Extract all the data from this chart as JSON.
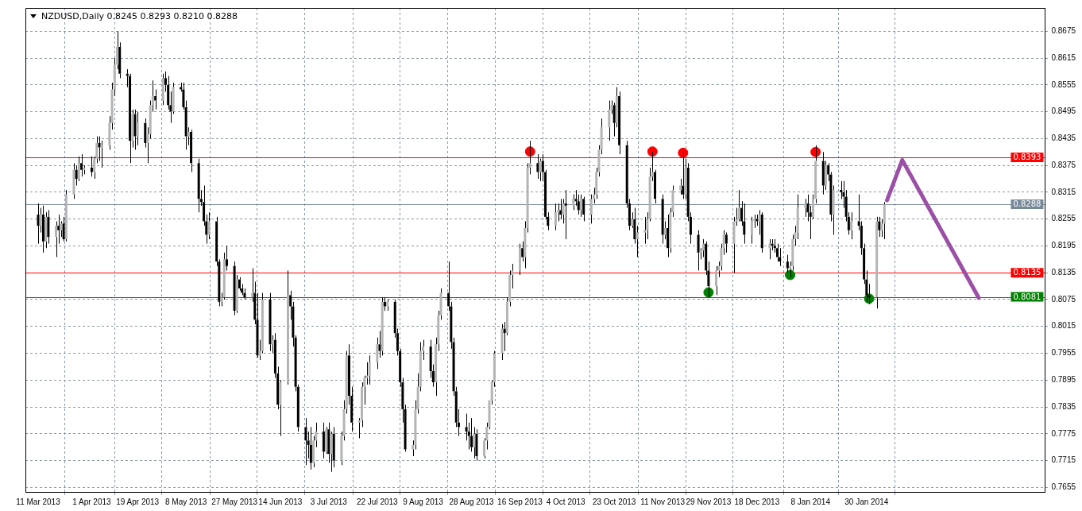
{
  "chart_data": {
    "type": "candlestick",
    "title": "NZDUSD,Daily  0.8245 0.8293 0.8210 0.8288",
    "x": [
      "2013-03-11",
      "2013-03-12",
      "2013-03-13",
      "2013-03-14",
      "2013-03-15",
      "2013-03-18",
      "2013-03-19",
      "2013-03-20",
      "2013-03-21",
      "2013-03-22",
      "2013-03-25",
      "2013-03-26",
      "2013-03-27",
      "2013-03-28",
      "2013-03-29",
      "2013-04-01",
      "2013-04-02",
      "2013-04-03",
      "2013-04-04",
      "2013-04-05",
      "2013-04-08",
      "2013-04-09",
      "2013-04-10",
      "2013-04-11",
      "2013-04-12",
      "2013-04-15",
      "2013-04-16",
      "2013-04-17",
      "2013-04-18",
      "2013-04-19",
      "2013-04-22",
      "2013-04-23",
      "2013-04-24",
      "2013-04-25",
      "2013-04-26",
      "2013-04-29",
      "2013-04-30",
      "2013-05-01",
      "2013-05-02",
      "2013-05-03",
      "2013-05-06",
      "2013-05-07",
      "2013-05-08",
      "2013-05-09",
      "2013-05-10",
      "2013-05-13",
      "2013-05-14",
      "2013-05-15",
      "2013-05-16",
      "2013-05-17",
      "2013-05-20",
      "2013-05-21",
      "2013-05-22",
      "2013-05-23",
      "2013-05-24",
      "2013-05-27",
      "2013-05-28",
      "2013-05-29",
      "2013-05-30",
      "2013-05-31",
      "2013-06-03",
      "2013-06-04",
      "2013-06-05",
      "2013-06-06",
      "2013-06-07",
      "2013-06-10",
      "2013-06-11",
      "2013-06-12",
      "2013-06-13",
      "2013-06-14",
      "2013-06-17",
      "2013-06-18",
      "2013-06-19",
      "2013-06-20",
      "2013-06-21",
      "2013-06-24",
      "2013-06-25",
      "2013-06-26",
      "2013-06-27",
      "2013-06-28",
      "2013-07-01",
      "2013-07-02",
      "2013-07-03",
      "2013-07-04",
      "2013-07-05",
      "2013-07-08",
      "2013-07-09",
      "2013-07-10",
      "2013-07-11",
      "2013-07-12",
      "2013-07-15",
      "2013-07-16",
      "2013-07-17",
      "2013-07-18",
      "2013-07-19",
      "2013-07-22",
      "2013-07-23",
      "2013-07-24",
      "2013-07-25",
      "2013-07-26",
      "2013-07-29",
      "2013-07-30",
      "2013-07-31",
      "2013-08-01",
      "2013-08-02",
      "2013-08-05",
      "2013-08-06",
      "2013-08-07",
      "2013-08-08",
      "2013-08-09",
      "2013-08-12",
      "2013-08-13",
      "2013-08-14",
      "2013-08-15",
      "2013-08-16",
      "2013-08-19",
      "2013-08-20",
      "2013-08-21",
      "2013-08-22",
      "2013-08-23",
      "2013-08-26",
      "2013-08-27",
      "2013-08-28",
      "2013-08-29",
      "2013-08-30",
      "2013-09-02",
      "2013-09-03",
      "2013-09-04",
      "2013-09-05",
      "2013-09-06",
      "2013-09-09",
      "2013-09-10",
      "2013-09-11",
      "2013-09-12",
      "2013-09-13",
      "2013-09-16",
      "2013-09-17",
      "2013-09-18",
      "2013-09-19",
      "2013-09-20",
      "2013-09-23",
      "2013-09-24",
      "2013-09-25",
      "2013-09-26",
      "2013-09-27",
      "2013-09-30",
      "2013-10-01",
      "2013-10-02",
      "2013-10-03",
      "2013-10-04",
      "2013-10-07",
      "2013-10-08",
      "2013-10-09",
      "2013-10-10",
      "2013-10-11",
      "2013-10-14",
      "2013-10-15",
      "2013-10-16",
      "2013-10-17",
      "2013-10-18",
      "2013-10-21",
      "2013-10-22",
      "2013-10-23",
      "2013-10-24",
      "2013-10-25",
      "2013-10-28",
      "2013-10-29",
      "2013-10-30",
      "2013-10-31",
      "2013-11-01",
      "2013-11-04",
      "2013-11-05",
      "2013-11-06",
      "2013-11-07",
      "2013-11-08",
      "2013-11-11",
      "2013-11-12",
      "2013-11-13",
      "2013-11-14",
      "2013-11-15",
      "2013-11-18",
      "2013-11-19",
      "2013-11-20",
      "2013-11-21",
      "2013-11-22",
      "2013-11-25",
      "2013-11-26",
      "2013-11-27",
      "2013-11-28",
      "2013-11-29",
      "2013-12-02",
      "2013-12-03",
      "2013-12-04",
      "2013-12-05",
      "2013-12-06",
      "2013-12-09",
      "2013-12-10",
      "2013-12-11",
      "2013-12-12",
      "2013-12-13",
      "2013-12-16",
      "2013-12-17",
      "2013-12-18",
      "2013-12-19",
      "2013-12-20",
      "2013-12-23",
      "2013-12-24",
      "2013-12-25",
      "2013-12-26",
      "2013-12-27",
      "2013-12-30",
      "2013-12-31",
      "2014-01-01",
      "2014-01-02",
      "2014-01-03",
      "2014-01-06",
      "2014-01-07",
      "2014-01-08",
      "2014-01-09",
      "2014-01-10",
      "2014-01-13",
      "2014-01-14",
      "2014-01-15",
      "2014-01-16",
      "2014-01-17",
      "2014-01-20",
      "2014-01-21",
      "2014-01-22",
      "2014-01-23",
      "2014-01-24",
      "2014-01-27",
      "2014-01-28",
      "2014-01-29",
      "2014-01-30",
      "2014-01-31",
      "2014-02-03",
      "2014-02-04",
      "2014-02-05",
      "2014-02-06"
    ],
    "ohlc": [
      [
        0.8265,
        0.829,
        0.82,
        0.824
      ],
      [
        0.824,
        0.828,
        0.8225,
        0.8265
      ],
      [
        0.8265,
        0.8285,
        0.818,
        0.8205
      ],
      [
        0.8205,
        0.827,
        0.819,
        0.826
      ],
      [
        0.826,
        0.8275,
        0.82,
        0.8215
      ],
      [
        0.8215,
        0.825,
        0.817,
        0.824
      ],
      [
        0.824,
        0.8265,
        0.82,
        0.823
      ],
      [
        0.823,
        0.825,
        0.8215,
        0.8245
      ],
      [
        0.8245,
        0.826,
        0.8205,
        0.821
      ],
      [
        0.821,
        0.832,
        0.8205,
        0.831
      ],
      [
        0.831,
        0.838,
        0.83,
        0.8365
      ],
      [
        0.8365,
        0.8375,
        0.833,
        0.8345
      ],
      [
        0.8345,
        0.8395,
        0.834,
        0.838
      ],
      [
        0.838,
        0.84,
        0.835,
        0.8365
      ],
      [
        0.8365,
        0.8375,
        0.8355,
        0.837
      ],
      [
        0.837,
        0.8395,
        0.835,
        0.836
      ],
      [
        0.836,
        0.8395,
        0.8345,
        0.839
      ],
      [
        0.839,
        0.844,
        0.838,
        0.8425
      ],
      [
        0.8425,
        0.844,
        0.8385,
        0.8415
      ],
      [
        0.8415,
        0.843,
        0.837,
        0.842
      ],
      [
        0.842,
        0.8485,
        0.841,
        0.847
      ],
      [
        0.847,
        0.856,
        0.8455,
        0.8545
      ],
      [
        0.8545,
        0.8615,
        0.853,
        0.86
      ],
      [
        0.86,
        0.8675,
        0.859,
        0.864
      ],
      [
        0.864,
        0.865,
        0.857,
        0.858
      ],
      [
        0.858,
        0.859,
        0.855,
        0.8575
      ],
      [
        0.8575,
        0.858,
        0.838,
        0.843
      ],
      [
        0.843,
        0.85,
        0.8415,
        0.849
      ],
      [
        0.849,
        0.85,
        0.841,
        0.844
      ],
      [
        0.844,
        0.8495,
        0.842,
        0.847
      ],
      [
        0.847,
        0.848,
        0.8415,
        0.8425
      ],
      [
        0.8425,
        0.846,
        0.838,
        0.8445
      ],
      [
        0.8445,
        0.852,
        0.8435,
        0.851
      ],
      [
        0.851,
        0.8565,
        0.8495,
        0.853
      ],
      [
        0.853,
        0.8545,
        0.85,
        0.852
      ],
      [
        0.852,
        0.858,
        0.851,
        0.857
      ],
      [
        0.857,
        0.8585,
        0.854,
        0.8555
      ],
      [
        0.8555,
        0.8575,
        0.85,
        0.851
      ],
      [
        0.851,
        0.854,
        0.847,
        0.8495
      ],
      [
        0.8495,
        0.856,
        0.849,
        0.855
      ],
      [
        0.855,
        0.856,
        0.854,
        0.8545
      ],
      [
        0.8545,
        0.856,
        0.85,
        0.8505
      ],
      [
        0.8505,
        0.852,
        0.841,
        0.844
      ],
      [
        0.844,
        0.846,
        0.842,
        0.845
      ],
      [
        0.845,
        0.8455,
        0.836,
        0.838
      ],
      [
        0.838,
        0.839,
        0.827,
        0.83
      ],
      [
        0.83,
        0.832,
        0.8285,
        0.8293
      ],
      [
        0.8293,
        0.833,
        0.824,
        0.825
      ],
      [
        0.825,
        0.8265,
        0.82,
        0.822
      ],
      [
        0.822,
        0.827,
        0.821,
        0.825
      ],
      [
        0.825,
        0.826,
        0.815,
        0.816
      ],
      [
        0.816,
        0.8165,
        0.806,
        0.807
      ],
      [
        0.807,
        0.809,
        0.806,
        0.808
      ],
      [
        0.808,
        0.818,
        0.8075,
        0.8165
      ],
      [
        0.8165,
        0.8195,
        0.814,
        0.815
      ],
      [
        0.815,
        0.816,
        0.804,
        0.805
      ],
      [
        0.805,
        0.813,
        0.8045,
        0.812
      ],
      [
        0.812,
        0.8125,
        0.8095,
        0.81
      ],
      [
        0.81,
        0.811,
        0.8085,
        0.809
      ],
      [
        0.809,
        0.81,
        0.8075,
        0.808
      ],
      [
        0.808,
        0.8145,
        0.807,
        0.809
      ],
      [
        0.809,
        0.8115,
        0.802,
        0.803
      ],
      [
        0.803,
        0.809,
        0.7945,
        0.795
      ],
      [
        0.795,
        0.7985,
        0.794,
        0.796
      ],
      [
        0.796,
        0.809,
        0.7955,
        0.8075
      ],
      [
        0.8075,
        0.809,
        0.796,
        0.7975
      ],
      [
        0.7975,
        0.7995,
        0.7955,
        0.7985
      ],
      [
        0.7985,
        0.8,
        0.79,
        0.791
      ],
      [
        0.791,
        0.7925,
        0.783,
        0.784
      ],
      [
        0.784,
        0.7895,
        0.777,
        0.789
      ],
      [
        0.789,
        0.814,
        0.7885,
        0.8085
      ],
      [
        0.8085,
        0.8095,
        0.803,
        0.806
      ],
      [
        0.806,
        0.807,
        0.797,
        0.799
      ],
      [
        0.799,
        0.7995,
        0.787,
        0.788
      ],
      [
        0.788,
        0.7885,
        0.778,
        0.779
      ],
      [
        0.779,
        0.781,
        0.7705,
        0.776
      ],
      [
        0.776,
        0.778,
        0.772,
        0.775
      ],
      [
        0.775,
        0.779,
        0.7695,
        0.771
      ],
      [
        0.771,
        0.777,
        0.77,
        0.776
      ],
      [
        0.776,
        0.78,
        0.7745,
        0.778
      ],
      [
        0.778,
        0.78,
        0.772,
        0.7735
      ],
      [
        0.7735,
        0.779,
        0.773,
        0.7785
      ],
      [
        0.7785,
        0.78,
        0.771,
        0.773
      ],
      [
        0.773,
        0.778,
        0.769,
        0.7775
      ],
      [
        0.7775,
        0.779,
        0.77,
        0.7715
      ],
      [
        0.7715,
        0.778,
        0.7705,
        0.777
      ],
      [
        0.777,
        0.785,
        0.776,
        0.783
      ],
      [
        0.783,
        0.796,
        0.782,
        0.795
      ],
      [
        0.795,
        0.7975,
        0.784,
        0.786
      ],
      [
        0.786,
        0.788,
        0.778,
        0.78
      ],
      [
        0.78,
        0.781,
        0.7765,
        0.7805
      ],
      [
        0.7805,
        0.789,
        0.779,
        0.788
      ],
      [
        0.788,
        0.7905,
        0.784,
        0.79
      ],
      [
        0.79,
        0.7935,
        0.7885,
        0.7905
      ],
      [
        0.7905,
        0.795,
        0.7885,
        0.7935
      ],
      [
        0.7935,
        0.799,
        0.792,
        0.7975
      ],
      [
        0.7975,
        0.8005,
        0.7945,
        0.796
      ],
      [
        0.796,
        0.808,
        0.795,
        0.807
      ],
      [
        0.807,
        0.808,
        0.805,
        0.806
      ],
      [
        0.806,
        0.8075,
        0.805,
        0.807
      ],
      [
        0.807,
        0.8075,
        0.799,
        0.8
      ],
      [
        0.8,
        0.801,
        0.795,
        0.796
      ],
      [
        0.796,
        0.7965,
        0.788,
        0.789
      ],
      [
        0.789,
        0.79,
        0.78,
        0.783
      ],
      [
        0.783,
        0.784,
        0.7735,
        0.774
      ],
      [
        0.774,
        0.776,
        0.7725,
        0.775
      ],
      [
        0.775,
        0.785,
        0.774,
        0.783
      ],
      [
        0.783,
        0.791,
        0.782,
        0.788
      ],
      [
        0.788,
        0.798,
        0.787,
        0.796
      ],
      [
        0.796,
        0.7985,
        0.794,
        0.797
      ],
      [
        0.797,
        0.7985,
        0.79,
        0.7915
      ],
      [
        0.7915,
        0.793,
        0.788,
        0.789
      ],
      [
        0.789,
        0.799,
        0.786,
        0.7975
      ],
      [
        0.7975,
        0.805,
        0.796,
        0.804
      ],
      [
        0.804,
        0.81,
        0.803,
        0.809
      ],
      [
        0.809,
        0.816,
        0.805,
        0.806
      ],
      [
        0.806,
        0.807,
        0.7965,
        0.798
      ],
      [
        0.798,
        0.799,
        0.786,
        0.787
      ],
      [
        0.787,
        0.788,
        0.779,
        0.78
      ],
      [
        0.78,
        0.783,
        0.777,
        0.779
      ],
      [
        0.779,
        0.782,
        0.776,
        0.778
      ],
      [
        0.778,
        0.78,
        0.774,
        0.777
      ],
      [
        0.777,
        0.781,
        0.7735,
        0.7745
      ],
      [
        0.7745,
        0.779,
        0.772,
        0.7775
      ],
      [
        0.7775,
        0.7785,
        0.7715,
        0.7725
      ],
      [
        0.7725,
        0.7765,
        0.772,
        0.776
      ],
      [
        0.776,
        0.78,
        0.774,
        0.779
      ],
      [
        0.779,
        0.785,
        0.7785,
        0.785
      ],
      [
        0.785,
        0.7895,
        0.784,
        0.789
      ],
      [
        0.789,
        0.796,
        0.788,
        0.7955
      ],
      [
        0.7955,
        0.802,
        0.794,
        0.801
      ],
      [
        0.801,
        0.8025,
        0.796,
        0.8
      ],
      [
        0.8,
        0.808,
        0.7995,
        0.807
      ],
      [
        0.807,
        0.814,
        0.806,
        0.813
      ],
      [
        0.813,
        0.8155,
        0.81,
        0.814
      ],
      [
        0.814,
        0.82,
        0.813,
        0.819
      ],
      [
        0.819,
        0.8205,
        0.816,
        0.817
      ],
      [
        0.817,
        0.825,
        0.8145,
        0.8235
      ],
      [
        0.8235,
        0.838,
        0.8225,
        0.837
      ],
      [
        0.837,
        0.843,
        0.8355,
        0.838
      ],
      [
        0.838,
        0.84,
        0.8345,
        0.836
      ],
      [
        0.836,
        0.839,
        0.834,
        0.8385
      ],
      [
        0.8385,
        0.84,
        0.834,
        0.836
      ],
      [
        0.836,
        0.8365,
        0.8255,
        0.826
      ],
      [
        0.826,
        0.827,
        0.823,
        0.824
      ],
      [
        0.824,
        0.829,
        0.823,
        0.827
      ],
      [
        0.827,
        0.829,
        0.825,
        0.8275
      ],
      [
        0.8275,
        0.83,
        0.8255,
        0.8265
      ],
      [
        0.8265,
        0.83,
        0.8245,
        0.829
      ],
      [
        0.829,
        0.832,
        0.821,
        0.8285
      ],
      [
        0.8285,
        0.831,
        0.8275,
        0.83
      ],
      [
        0.83,
        0.832,
        0.8285,
        0.8295
      ],
      [
        0.8295,
        0.831,
        0.8265,
        0.8275
      ],
      [
        0.8275,
        0.831,
        0.826,
        0.83
      ],
      [
        0.83,
        0.8305,
        0.825,
        0.8265
      ],
      [
        0.8265,
        0.831,
        0.8245,
        0.83
      ],
      [
        0.83,
        0.8325,
        0.829,
        0.831
      ],
      [
        0.831,
        0.837,
        0.83,
        0.836
      ],
      [
        0.836,
        0.842,
        0.835,
        0.841
      ],
      [
        0.841,
        0.848,
        0.84,
        0.846
      ],
      [
        0.846,
        0.852,
        0.843,
        0.85
      ],
      [
        0.85,
        0.852,
        0.849,
        0.851
      ],
      [
        0.851,
        0.8515,
        0.844,
        0.847
      ],
      [
        0.847,
        0.855,
        0.846,
        0.853
      ],
      [
        0.853,
        0.854,
        0.84,
        0.842
      ],
      [
        0.842,
        0.843,
        0.828,
        0.829
      ],
      [
        0.829,
        0.83,
        0.823,
        0.824
      ],
      [
        0.824,
        0.827,
        0.8235,
        0.8255
      ],
      [
        0.8255,
        0.828,
        0.82,
        0.821
      ],
      [
        0.821,
        0.824,
        0.817,
        0.8225
      ],
      [
        0.8225,
        0.826,
        0.82,
        0.823
      ],
      [
        0.823,
        0.827,
        0.821,
        0.8255
      ],
      [
        0.8255,
        0.837,
        0.825,
        0.835
      ],
      [
        0.835,
        0.8405,
        0.834,
        0.836
      ],
      [
        0.836,
        0.8365,
        0.829,
        0.83
      ],
      [
        0.83,
        0.831,
        0.82,
        0.822
      ],
      [
        0.822,
        0.825,
        0.821,
        0.8235
      ],
      [
        0.8235,
        0.8265,
        0.817,
        0.819
      ],
      [
        0.819,
        0.828,
        0.818,
        0.827
      ],
      [
        0.827,
        0.833,
        0.826,
        0.832
      ],
      [
        0.832,
        0.8345,
        0.831,
        0.833
      ],
      [
        0.833,
        0.8405,
        0.83,
        0.831
      ],
      [
        0.831,
        0.839,
        0.83,
        0.837
      ],
      [
        0.837,
        0.838,
        0.825,
        0.826
      ],
      [
        0.826,
        0.827,
        0.82,
        0.822
      ],
      [
        0.822,
        0.823,
        0.814,
        0.818
      ],
      [
        0.818,
        0.819,
        0.8165,
        0.8185
      ],
      [
        0.8185,
        0.821,
        0.817,
        0.82
      ],
      [
        0.82,
        0.8205,
        0.813,
        0.814
      ],
      [
        0.814,
        0.816,
        0.808,
        0.8105
      ],
      [
        0.8105,
        0.815,
        0.8085,
        0.814
      ],
      [
        0.814,
        0.816,
        0.8125,
        0.815
      ],
      [
        0.815,
        0.82,
        0.814,
        0.819
      ],
      [
        0.819,
        0.823,
        0.8175,
        0.822
      ],
      [
        0.822,
        0.8225,
        0.818,
        0.82
      ],
      [
        0.82,
        0.826,
        0.8135,
        0.825
      ],
      [
        0.825,
        0.828,
        0.824,
        0.8255
      ],
      [
        0.8255,
        0.832,
        0.825,
        0.828
      ],
      [
        0.828,
        0.8295,
        0.824,
        0.825
      ],
      [
        0.825,
        0.829,
        0.82,
        0.822
      ],
      [
        0.822,
        0.826,
        0.82,
        0.825
      ],
      [
        0.825,
        0.8265,
        0.8235,
        0.8255
      ],
      [
        0.8255,
        0.8265,
        0.824,
        0.825
      ],
      [
        0.825,
        0.8275,
        0.822,
        0.8265
      ],
      [
        0.8265,
        0.827,
        0.818,
        0.819
      ],
      [
        0.819,
        0.821,
        0.8165,
        0.82
      ],
      [
        0.82,
        0.821,
        0.8185,
        0.8195
      ],
      [
        0.8195,
        0.821,
        0.818,
        0.819
      ],
      [
        0.819,
        0.82,
        0.816,
        0.817
      ],
      [
        0.817,
        0.819,
        0.815,
        0.816
      ],
      [
        0.816,
        0.8175,
        0.8135,
        0.8145
      ],
      [
        0.8145,
        0.816,
        0.8125,
        0.815
      ],
      [
        0.815,
        0.822,
        0.814,
        0.821
      ],
      [
        0.821,
        0.824,
        0.8195,
        0.8225
      ],
      [
        0.8225,
        0.831,
        0.821,
        0.828
      ],
      [
        0.828,
        0.83,
        0.826,
        0.829
      ],
      [
        0.829,
        0.831,
        0.825,
        0.827
      ],
      [
        0.827,
        0.8285,
        0.821,
        0.826
      ],
      [
        0.826,
        0.831,
        0.8255,
        0.83
      ],
      [
        0.83,
        0.842,
        0.829,
        0.8385
      ],
      [
        0.8385,
        0.8405,
        0.831,
        0.833
      ],
      [
        0.833,
        0.8385,
        0.832,
        0.8375
      ],
      [
        0.8375,
        0.838,
        0.834,
        0.8355
      ],
      [
        0.8355,
        0.836,
        0.825,
        0.8265
      ],
      [
        0.8265,
        0.833,
        0.822,
        0.832
      ],
      [
        0.832,
        0.834,
        0.83,
        0.8315
      ],
      [
        0.8315,
        0.834,
        0.828,
        0.8305
      ],
      [
        0.8305,
        0.832,
        0.825,
        0.826
      ],
      [
        0.826,
        0.827,
        0.822,
        0.823
      ],
      [
        0.823,
        0.827,
        0.821,
        0.825
      ],
      [
        0.825,
        0.831,
        0.823,
        0.824
      ],
      [
        0.824,
        0.825,
        0.8175,
        0.819
      ],
      [
        0.819,
        0.82,
        0.811,
        0.812
      ],
      [
        0.812,
        0.814,
        0.807,
        0.8085
      ],
      [
        0.8085,
        0.811,
        0.8065,
        0.808
      ],
      [
        0.808,
        0.826,
        0.8055,
        0.825
      ],
      [
        0.825,
        0.826,
        0.8215,
        0.823
      ],
      [
        0.823,
        0.8255,
        0.8215,
        0.8245
      ],
      [
        0.8245,
        0.8293,
        0.821,
        0.8288
      ]
    ],
    "series": [
      {
        "type": "scatter",
        "color": "#ff0000",
        "marker": "circle",
        "x": [
          "2013-09-20",
          "2013-11-07",
          "2013-11-19",
          "2014-01-10"
        ],
        "values": [
          0.8406,
          0.8406,
          0.8403,
          0.8405
        ]
      },
      {
        "type": "scatter",
        "color": "#008000",
        "marker": "circle",
        "x": [
          "2013-11-29",
          "2013-12-31",
          "2014-01-31"
        ],
        "values": [
          0.8091,
          0.813,
          0.8077
        ]
      },
      {
        "type": "line",
        "color": "#9b4fa6",
        "marker": "none",
        "x": [
          "2014-02-07",
          "2014-02-13",
          "2014-03-15"
        ],
        "values": [
          0.8297,
          0.8387,
          0.8079
        ]
      }
    ],
    "ref_lines": [
      {
        "axis": "y",
        "value": 0.8393,
        "label": "0.8393",
        "color": "#ff0000"
      },
      {
        "axis": "y",
        "value": 0.8288,
        "label": "0.8288",
        "color": "#778899"
      },
      {
        "axis": "y",
        "value": 0.8135,
        "label": "0.8135",
        "color": "#ff0000"
      },
      {
        "axis": "y",
        "value": 0.8081,
        "label": "0.8081",
        "color": "#008000"
      }
    ],
    "xlim": [
      "2013-03-06",
      "2014-04-10"
    ],
    "xticks": [
      {
        "value": "2013-03-11",
        "label": "11 Mar 2013"
      },
      {
        "value": "2013-04-01",
        "label": "1 Apr 2013"
      },
      {
        "value": "2013-04-19",
        "label": "19 Apr 2013"
      },
      {
        "value": "2013-05-08",
        "label": "8 May 2013"
      },
      {
        "value": "2013-05-27",
        "label": "27 May 2013"
      },
      {
        "value": "2013-06-14",
        "label": "14 Jun 2013"
      },
      {
        "value": "2013-07-03",
        "label": "3 Jul 2013"
      },
      {
        "value": "2013-07-22",
        "label": "22 Jul 2013"
      },
      {
        "value": "2013-08-09",
        "label": "9 Aug 2013"
      },
      {
        "value": "2013-08-28",
        "label": "28 Aug 2013"
      },
      {
        "value": "2013-09-16",
        "label": "16 Sep 2013"
      },
      {
        "value": "2013-10-04",
        "label": "4 Oct 2013"
      },
      {
        "value": "2013-10-23",
        "label": "23 Oct 2013"
      },
      {
        "value": "2013-11-11",
        "label": "11 Nov 2013"
      },
      {
        "value": "2013-11-29",
        "label": "29 Nov 2013"
      },
      {
        "value": "2013-12-18",
        "label": "18 Dec 2013"
      },
      {
        "value": "2014-01-08",
        "label": "8 Jan 2014"
      },
      {
        "value": "2014-01-30",
        "label": "30 Jan 2014"
      }
    ],
    "ylim": [
      0.7645,
      0.8727
    ],
    "yticks": [
      {
        "value": 0.7655,
        "label": "0.7655"
      },
      {
        "value": 0.7715,
        "label": "0.7715"
      },
      {
        "value": 0.7775,
        "label": "0.7775"
      },
      {
        "value": 0.7835,
        "label": "0.7835"
      },
      {
        "value": 0.7895,
        "label": "0.7895"
      },
      {
        "value": 0.7955,
        "label": "0.7955"
      },
      {
        "value": 0.8015,
        "label": "0.8015"
      },
      {
        "value": 0.8075,
        "label": "0.8075"
      },
      {
        "value": 0.8135,
        "label": "0.8135"
      },
      {
        "value": 0.8195,
        "label": "0.8195"
      },
      {
        "value": 0.8255,
        "label": "0.8255"
      },
      {
        "value": 0.8315,
        "label": "0.8315"
      },
      {
        "value": 0.8375,
        "label": "0.8375"
      },
      {
        "value": 0.8435,
        "label": "0.8435"
      },
      {
        "value": 0.8495,
        "label": "0.8495"
      },
      {
        "value": 0.8555,
        "label": "0.8555"
      },
      {
        "value": 0.8615,
        "label": "0.8615"
      },
      {
        "value": 0.8675,
        "label": "0.8675"
      }
    ],
    "grid": true
  }
}
